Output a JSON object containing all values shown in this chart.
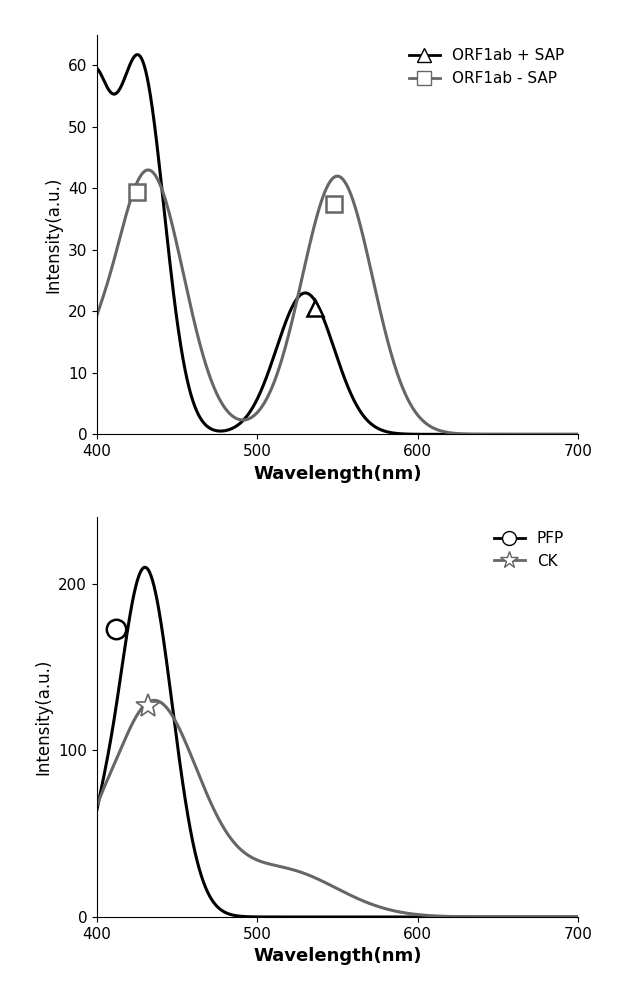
{
  "top_chart": {
    "xlabel": "Wavelength(nm)",
    "ylabel": "Intensity(a.u.)",
    "xlim": [
      400,
      700
    ],
    "ylim": [
      0,
      65
    ],
    "yticks": [
      0,
      10,
      20,
      30,
      40,
      50,
      60
    ],
    "xticks": [
      400,
      500,
      600,
      700
    ],
    "line1_color": "#000000",
    "line1_label": "ORF1ab + SAP",
    "line1_marker_x": 536,
    "line1_marker_y": 20.5,
    "line2_color": "#666666",
    "line2_label": "ORF1ab - SAP",
    "line2_marker1_x": 425,
    "line2_marker1_y": 39.5,
    "line2_marker2_x": 548,
    "line2_marker2_y": 37.5
  },
  "bottom_chart": {
    "xlabel": "Wavelength(nm)",
    "ylabel": "Intensity(a.u.)",
    "xlim": [
      400,
      700
    ],
    "ylim": [
      0,
      240
    ],
    "yticks": [
      0,
      100,
      200
    ],
    "xticks": [
      400,
      500,
      600,
      700
    ],
    "line1_color": "#000000",
    "line1_label": "PFP",
    "line1_marker_x": 412,
    "line1_marker_y": 173,
    "line2_color": "#666666",
    "line2_label": "CK",
    "line2_marker_x": 432,
    "line2_marker_y": 127
  }
}
